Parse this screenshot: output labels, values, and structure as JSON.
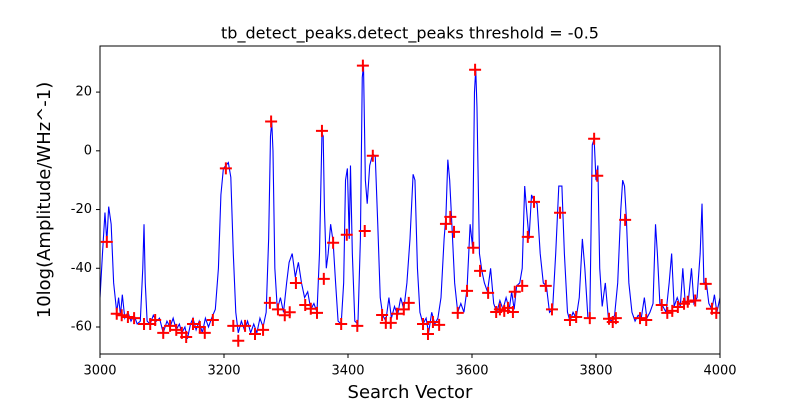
{
  "chart_data": {
    "type": "line",
    "title": "tb_detect_peaks.detect_peaks threshold = -0.5",
    "x_label": "Search Vector",
    "y_label": "10log(Amplitude/WHz^-1)",
    "xlim": [
      3000,
      4000
    ],
    "xticks": [
      3000,
      3200,
      3400,
      3600,
      3800,
      4000
    ],
    "ylim": [
      -69.2,
      35.7
    ],
    "yticks": [
      -60,
      -40,
      -20,
      0,
      20
    ],
    "x": [
      3000,
      3004,
      3008,
      3011,
      3014,
      3018,
      3022,
      3027,
      3030,
      3033,
      3036,
      3040,
      3045,
      3050,
      3055,
      3060,
      3065,
      3069,
      3071,
      3073,
      3076,
      3081,
      3086,
      3091,
      3096,
      3102,
      3108,
      3113,
      3118,
      3123,
      3128,
      3132,
      3137,
      3141,
      3146,
      3150,
      3155,
      3160,
      3165,
      3170,
      3175,
      3180,
      3186,
      3191,
      3195,
      3199,
      3203,
      3207,
      3211,
      3215,
      3219,
      3223,
      3228,
      3233,
      3238,
      3243,
      3248,
      3253,
      3258,
      3263,
      3268,
      3272,
      3275,
      3277,
      3279,
      3282,
      3286,
      3291,
      3296,
      3301,
      3305,
      3310,
      3315,
      3320,
      3325,
      3330,
      3335,
      3340,
      3345,
      3350,
      3354,
      3358,
      3360,
      3362,
      3365,
      3368,
      3372,
      3376,
      3380,
      3384,
      3389,
      3393,
      3396,
      3399,
      3402,
      3404,
      3407,
      3411,
      3416,
      3420,
      3423,
      3425,
      3428,
      3431,
      3435,
      3440,
      3444,
      3448,
      3452,
      3456,
      3461,
      3466,
      3470,
      3475,
      3480,
      3485,
      3490,
      3495,
      3500,
      3505,
      3508,
      3512,
      3516,
      3521,
      3526,
      3530,
      3535,
      3540,
      3545,
      3550,
      3555,
      3558,
      3561,
      3564,
      3568,
      3572,
      3577,
      3582,
      3587,
      3592,
      3597,
      3601,
      3604,
      3606,
      3608,
      3612,
      3616,
      3620,
      3625,
      3630,
      3635,
      3640,
      3645,
      3650,
      3655,
      3660,
      3664,
      3668,
      3672,
      3677,
      3681,
      3685,
      3688,
      3692,
      3696,
      3700,
      3705,
      3710,
      3715,
      3720,
      3725,
      3730,
      3735,
      3740,
      3745,
      3749,
      3754,
      3758,
      3763,
      3768,
      3773,
      3778,
      3782,
      3787,
      3790,
      3794,
      3797,
      3800,
      3803,
      3806,
      3810,
      3815,
      3820,
      3825,
      3830,
      3835,
      3840,
      3843,
      3846,
      3849,
      3853,
      3858,
      3863,
      3868,
      3873,
      3878,
      3882,
      3887,
      3892,
      3896,
      3899,
      3903,
      3908,
      3913,
      3918,
      3922,
      3926,
      3931,
      3936,
      3940,
      3944,
      3949,
      3954,
      3958,
      3963,
      3968,
      3971,
      3974,
      3978,
      3982,
      3987,
      3991,
      3995,
      4000
    ],
    "series": [
      {
        "color": "#0000ff",
        "values": [
          -50,
          -35,
          -21,
          -31,
          -19,
          -25,
          -45,
          -55,
          -50,
          -56,
          -49,
          -57,
          -55,
          -58,
          -56,
          -59,
          -58,
          -40,
          -25,
          -45,
          -58,
          -59,
          -56,
          -58,
          -57,
          -62,
          -58,
          -60,
          -57,
          -61,
          -59,
          -62,
          -60,
          -64,
          -59,
          -57,
          -61,
          -58,
          -62,
          -57,
          -60,
          -57,
          -54,
          -40,
          -15,
          -6,
          -5,
          -4,
          -9,
          -35,
          -55,
          -62,
          -58,
          -61,
          -58,
          -62,
          -59,
          -62,
          -57,
          -60,
          -55,
          -30,
          5,
          10,
          0,
          -40,
          -54,
          -50,
          -55,
          -45,
          -38,
          -35,
          -43,
          -38,
          -45,
          -50,
          -48,
          -54,
          -52,
          -55,
          -35,
          6,
          5,
          -20,
          -40,
          -35,
          -25,
          -31,
          -45,
          -58,
          -59,
          -45,
          -10,
          -6,
          -30,
          -5,
          -35,
          -58,
          -59,
          -30,
          25,
          29,
          -10,
          -18,
          -5,
          -1,
          -2,
          -25,
          -50,
          -56,
          -58,
          -50,
          -57,
          -53,
          -56,
          -50,
          -54,
          -45,
          -30,
          -8,
          -10,
          -40,
          -55,
          -59,
          -57,
          -62,
          -55,
          -59,
          -57,
          -50,
          -30,
          -22,
          -3,
          -10,
          -27,
          -45,
          -55,
          -52,
          -55,
          -47,
          -25,
          -33,
          20,
          28,
          15,
          -35,
          -41,
          -45,
          -48,
          -40,
          -52,
          -55,
          -51,
          -54,
          -50,
          -54,
          -48,
          -54,
          -46,
          -45,
          -40,
          -12,
          -20,
          -30,
          -15,
          -17,
          -18,
          -35,
          -45,
          -46,
          -55,
          -54,
          -35,
          -12,
          -12,
          -35,
          -55,
          -58,
          -55,
          -57,
          -50,
          -30,
          -40,
          -57,
          -57,
          2,
          4,
          -10,
          -5,
          -40,
          -53,
          -45,
          -57,
          -58,
          -56,
          -45,
          -20,
          -10,
          -12,
          -23,
          -45,
          -55,
          -58,
          -56,
          -57,
          -50,
          -57,
          -55,
          -52,
          -25,
          -35,
          -52,
          -53,
          -55,
          -45,
          -35,
          -53,
          -50,
          -53,
          -40,
          -52,
          -51,
          -40,
          -52,
          -50,
          -35,
          -18,
          -45,
          -45,
          -52,
          -54,
          -49,
          -55,
          -50
        ]
      }
    ],
    "peaks": {
      "color": "#ff0000",
      "x": [
        3011,
        3027,
        3035,
        3045,
        3055,
        3071,
        3081,
        3089,
        3102,
        3113,
        3123,
        3132,
        3139,
        3150,
        3161,
        3169,
        3182,
        3203,
        3215,
        3223,
        3234,
        3250,
        3263,
        3274,
        3276,
        3287,
        3298,
        3306,
        3316,
        3331,
        3340,
        3350,
        3358,
        3361,
        3376,
        3389,
        3398,
        3415,
        3424,
        3427,
        3440,
        3455,
        3461,
        3469,
        3479,
        3490,
        3498,
        3521,
        3529,
        3537,
        3547,
        3558,
        3565,
        3571,
        3577,
        3592,
        3602,
        3605,
        3613,
        3626,
        3639,
        3645,
        3652,
        3658,
        3666,
        3669,
        3681,
        3690,
        3700,
        3719,
        3729,
        3742,
        3758,
        3768,
        3790,
        3797,
        3802,
        3821,
        3827,
        3832,
        3847,
        3871,
        3881,
        3906,
        3915,
        3923,
        3932,
        3942,
        3948,
        3960,
        3977,
        3987,
        3994
      ],
      "values": [
        -31,
        -55.5,
        -56,
        -56.6,
        -57,
        -59,
        -59,
        -57.6,
        -62,
        -59.6,
        -61,
        -62,
        -63.4,
        -59,
        -60,
        -62,
        -57.6,
        -6,
        -59.6,
        -64.7,
        -59.6,
        -62.4,
        -61,
        -51.8,
        10,
        -54,
        -56,
        -55,
        -45,
        -52.5,
        -53.8,
        -55.2,
        6.8,
        -43.6,
        -31.3,
        -59,
        -28.6,
        -59.6,
        29,
        -27.3,
        -1.7,
        -55.9,
        -58.6,
        -58.6,
        -55.5,
        -54,
        -51.8,
        -59,
        -62.4,
        -58.3,
        -59.3,
        -24.9,
        -22.5,
        -27.6,
        -55.2,
        -47.7,
        -33,
        27.6,
        -40.9,
        -48.4,
        -54.9,
        -54,
        -54.5,
        -53.5,
        -54.9,
        -48,
        -46,
        -29.3,
        -17.4,
        -46,
        -54,
        -21.1,
        -57.6,
        -56.6,
        -57,
        4.1,
        -8.5,
        -57.2,
        -58.3,
        -57,
        -23.5,
        -57,
        -57.6,
        -52.5,
        -55.2,
        -54.5,
        -53.2,
        -52.1,
        -51.4,
        -51,
        -45.3,
        -53.8,
        -55.2
      ]
    }
  }
}
